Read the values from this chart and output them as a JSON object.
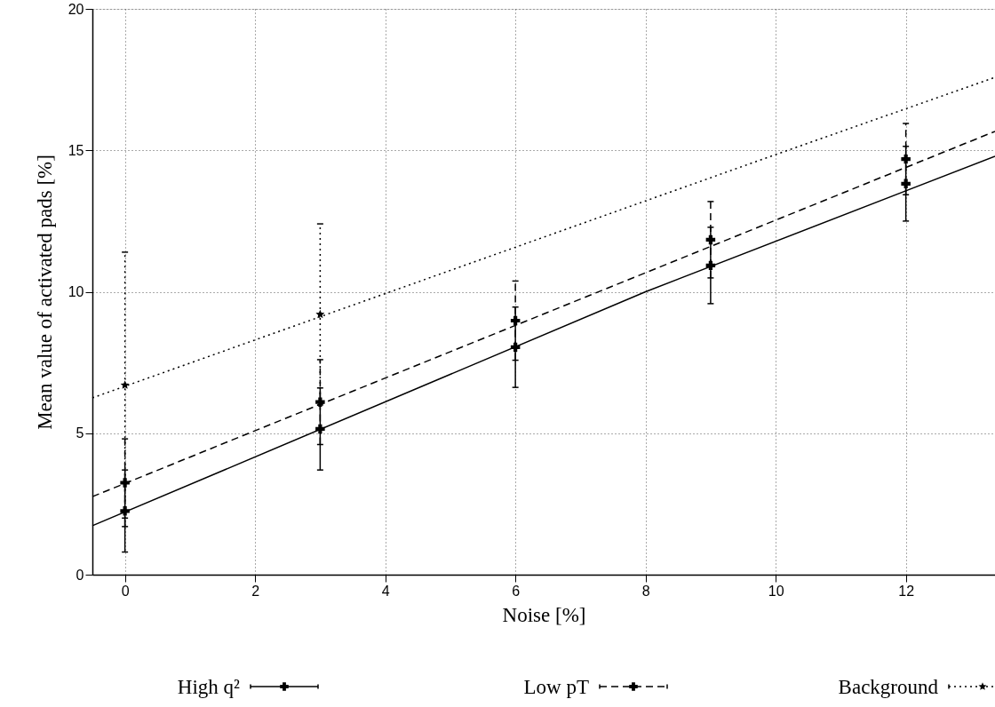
{
  "chart_data": {
    "type": "scatter",
    "xlabel": "Noise [%]",
    "ylabel": "Mean value of activated pads [%]",
    "x": [
      0,
      3,
      6,
      9,
      12
    ],
    "xlim": [
      -0.5,
      13.37
    ],
    "ylim": [
      0,
      20
    ],
    "xticks": [
      0,
      2,
      4,
      6,
      8,
      10,
      12
    ],
    "yticks": [
      0,
      5,
      10,
      15,
      20
    ],
    "grid": true,
    "legend": "bottom",
    "series": [
      {
        "name": "High q²",
        "color": "#000000",
        "marker": "cross",
        "line_style": "solid",
        "values": [
          2.25,
          5.15,
          8.04,
          10.93,
          13.82
        ],
        "errors": [
          1.45,
          1.45,
          1.42,
          1.35,
          1.32
        ]
      },
      {
        "name": "Low pT",
        "color": "#000000",
        "marker": "cross",
        "line_style": "dashed",
        "values": [
          3.25,
          6.1,
          8.98,
          11.84,
          14.69
        ],
        "errors": [
          1.55,
          1.5,
          1.4,
          1.35,
          1.26
        ]
      },
      {
        "name": "Background",
        "color": "#000000",
        "marker": "star",
        "line_style": "dotted",
        "values": [
          6.7,
          9.2,
          null,
          null,
          null
        ],
        "errors": [
          4.7,
          3.2,
          null,
          null,
          null
        ]
      },
      {
        "type": "line",
        "color": "#000000",
        "line_style": "solid",
        "x": [
          -0.5,
          8,
          13.37
        ],
        "values": [
          1.73,
          10.0,
          14.79
        ]
      },
      {
        "type": "line",
        "color": "#000000",
        "line_style": "dashed",
        "x": [
          -0.5,
          4,
          13.37
        ],
        "values": [
          2.76,
          6.95,
          15.67
        ]
      },
      {
        "type": "line",
        "color": "#000000",
        "line_style": "dotted",
        "x": [
          -0.5,
          10,
          13.37
        ],
        "values": [
          6.25,
          14.85,
          17.58
        ]
      }
    ]
  }
}
